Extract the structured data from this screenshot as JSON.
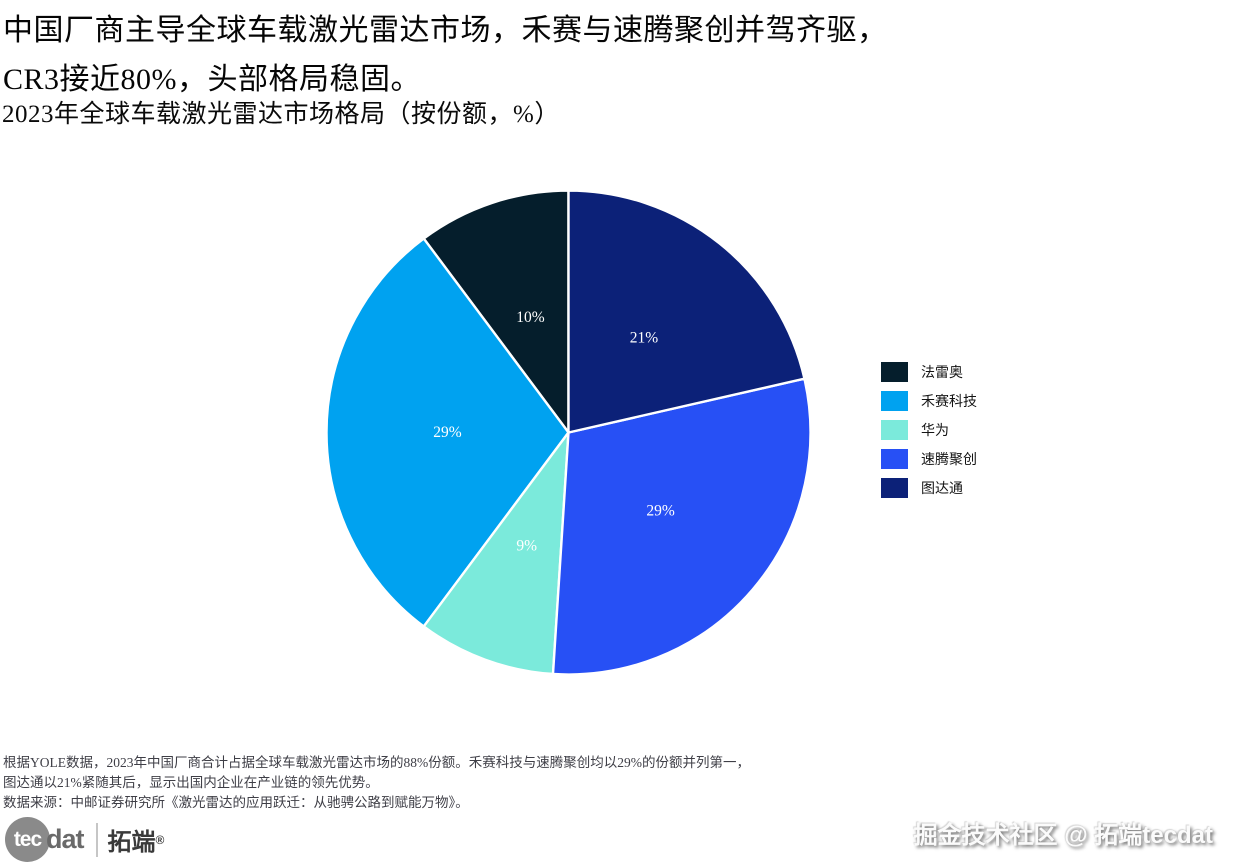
{
  "header": {
    "title_line1": "中国厂商主导全球车载激光雷达市场，禾赛与速腾聚创并驾齐驱，",
    "title_line2": "CR3接近80%，头部格局稳固。",
    "subtitle": "2023年全球车载激光雷达市场格局（按份额，%）"
  },
  "chart_data": {
    "type": "pie",
    "title": "2023年全球车载激光雷达市场格局（按份额，%）",
    "unit": "%",
    "start_angle_deg": 90,
    "direction": "counterclockwise",
    "label_distance": 0.5,
    "slice_border_color": "#ffffff",
    "slice_label_color": "#ffffff",
    "legend_position": "right",
    "slices": [
      {
        "name": "法雷奥",
        "value": 10,
        "label": "10%",
        "color": "#051e2c"
      },
      {
        "name": "禾赛科技",
        "value": 29,
        "label": "29%",
        "color": "#00a2f0"
      },
      {
        "name": "华为",
        "value": 9,
        "label": "9%",
        "color": "#7beadb"
      },
      {
        "name": "速腾聚创",
        "value": 29,
        "label": "29%",
        "color": "#2750f5"
      },
      {
        "name": "图达通",
        "value": 21,
        "label": "21%",
        "color": "#0c2178"
      }
    ]
  },
  "footer": {
    "note_line1": "根据YOLE数据，2023年中国厂商合计占据全球车载激光雷达市场的88%份额。禾赛科技与速腾聚创均以29%的份额并列第一，",
    "note_line2": "图达通以21%紧随其后，显示出国内企业在产业链的领先优势。",
    "source_line": "数据来源：中邮证券研究所《激光雷达的应用跃迁：从驰骋公路到赋能万物》。"
  },
  "branding": {
    "logo_text_circle": "tec",
    "logo_text_rest": "dat",
    "logo_cn": "拓端",
    "logo_reg": "®",
    "watermark": "掘金技术社区 @ 拓端tecdat"
  }
}
